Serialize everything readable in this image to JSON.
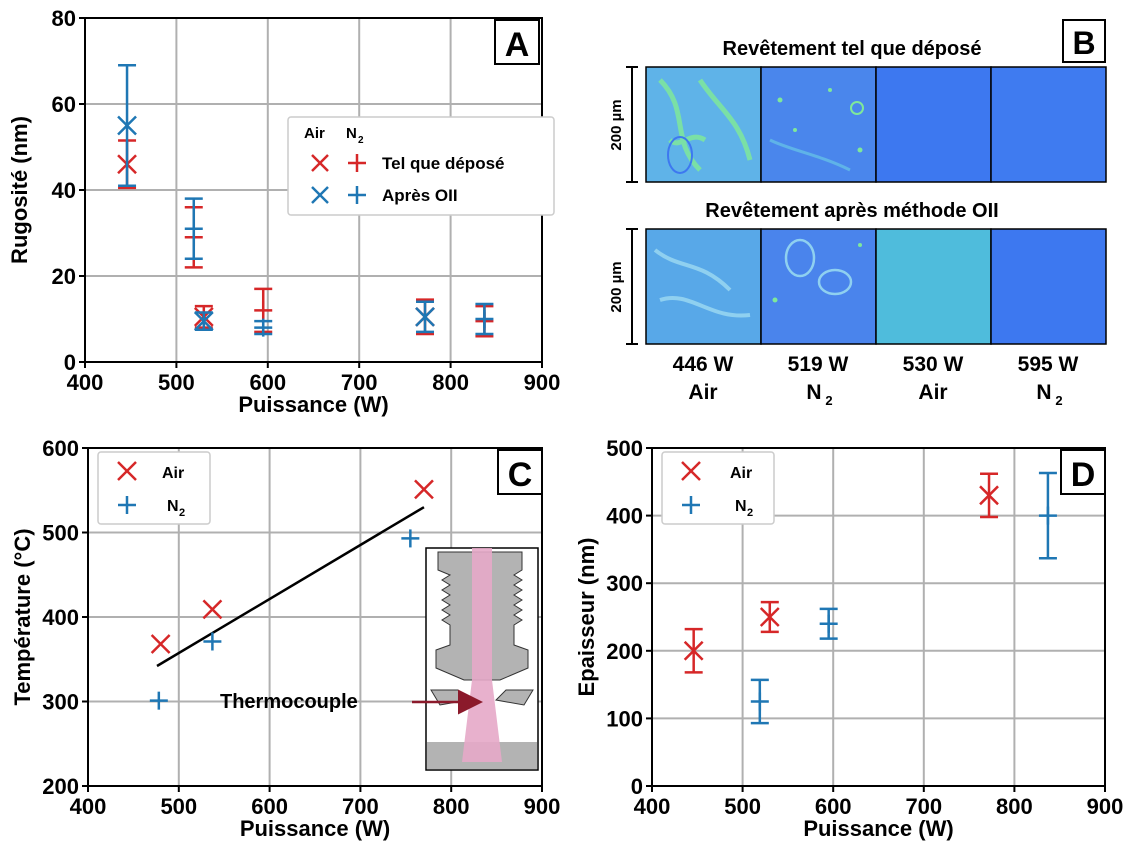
{
  "colors": {
    "air": "#d62728",
    "n2": "#1f77b4",
    "grid": "#b0b0b0",
    "tile_blue": "#3d78f0",
    "tile_cyan": "#4fc0de",
    "tile_green": "#7fe89a",
    "nozzle_grey": "#b3b3b3",
    "plume_pink": "#e6a8c8"
  },
  "chart_data": [
    {
      "panel": "A",
      "type": "scatter",
      "xlabel": "Puissance (W)",
      "ylabel": "Rugosité (nm)",
      "xlim": [
        400,
        900
      ],
      "ylim": [
        0,
        80
      ],
      "xticks": [
        400,
        500,
        600,
        700,
        800,
        900
      ],
      "yticks": [
        0,
        20,
        40,
        60,
        80
      ],
      "grid": true,
      "legend_position": "right",
      "legend_header": {
        "air": "Air",
        "n2_main": "N",
        "n2_sub": "2"
      },
      "legend_entries": [
        "Tel que déposé",
        "Après OII"
      ],
      "series": [
        {
          "name": "Tel que déposé",
          "atmosphere": "Air",
          "marker": "x",
          "color": "#d62728",
          "points": [
            {
              "x": 446,
              "y": 46,
              "err": 5.5
            },
            {
              "x": 530,
              "y": 10.5,
              "err": 2.5
            },
            {
              "x": 772,
              "y": 10.5,
              "err": 4
            }
          ]
        },
        {
          "name": "Tel que déposé",
          "atmosphere": "N2",
          "marker": "+",
          "color": "#d62728",
          "points": [
            {
              "x": 519,
              "y": 29,
              "err": 7
            },
            {
              "x": 595,
              "y": 12,
              "err": 5
            },
            {
              "x": 837,
              "y": 9.5,
              "err": 3.5
            }
          ]
        },
        {
          "name": "Après OII",
          "atmosphere": "Air",
          "marker": "x",
          "color": "#1f77b4",
          "points": [
            {
              "x": 446,
              "y": 55,
              "err": 14
            },
            {
              "x": 530,
              "y": 9.5,
              "err": 2
            },
            {
              "x": 772,
              "y": 10.5,
              "err": 3.5
            }
          ]
        },
        {
          "name": "Après OII",
          "atmosphere": "N2",
          "marker": "+",
          "color": "#1f77b4",
          "points": [
            {
              "x": 519,
              "y": 31,
              "err": 7
            },
            {
              "x": 595,
              "y": 8,
              "err": 1.5
            },
            {
              "x": 837,
              "y": 10,
              "err": 3.5
            }
          ]
        }
      ]
    },
    {
      "panel": "C",
      "type": "scatter",
      "xlabel": "Puissance (W)",
      "ylabel": "Température (°C)",
      "xlim": [
        400,
        900
      ],
      "ylim": [
        200,
        600
      ],
      "xticks": [
        400,
        500,
        600,
        700,
        800,
        900
      ],
      "yticks": [
        200,
        300,
        400,
        500,
        600
      ],
      "grid": true,
      "legend_position": "top-left",
      "series": [
        {
          "name": "Air",
          "marker": "x",
          "color": "#d62728",
          "points": [
            {
              "x": 480,
              "y": 368
            },
            {
              "x": 537,
              "y": 409
            },
            {
              "x": 770,
              "y": 551
            }
          ]
        },
        {
          "name": "N2",
          "label_main": "N",
          "label_sub": "2",
          "marker": "+",
          "color": "#1f77b4",
          "points": [
            {
              "x": 478,
              "y": 301
            },
            {
              "x": 537,
              "y": 371
            },
            {
              "x": 755,
              "y": 493
            }
          ]
        }
      ],
      "fit_line": {
        "x": [
          476,
          770
        ],
        "y": [
          342,
          530
        ],
        "color": "#000000"
      },
      "annotation": "Thermocouple"
    },
    {
      "panel": "D",
      "type": "scatter",
      "xlabel": "Puissance (W)",
      "ylabel": "Epaisseur (nm)",
      "xlim": [
        400,
        900
      ],
      "ylim": [
        0,
        500
      ],
      "xticks": [
        400,
        500,
        600,
        700,
        800,
        900
      ],
      "yticks": [
        0,
        100,
        200,
        300,
        400,
        500
      ],
      "grid": true,
      "legend_position": "top-left",
      "series": [
        {
          "name": "Air",
          "marker": "x",
          "color": "#d62728",
          "points": [
            {
              "x": 446,
              "y": 200,
              "err": 32
            },
            {
              "x": 530,
              "y": 250,
              "err": 22
            },
            {
              "x": 772,
              "y": 430,
              "err": 32
            }
          ]
        },
        {
          "name": "N2",
          "label_main": "N",
          "label_sub": "2",
          "marker": "+",
          "color": "#1f77b4",
          "points": [
            {
              "x": 519,
              "y": 125,
              "err": 32
            },
            {
              "x": 595,
              "y": 240,
              "err": 22
            },
            {
              "x": 837,
              "y": 400,
              "err": 63
            }
          ]
        }
      ]
    }
  ],
  "panel_b": {
    "label": "B",
    "top_title": "Revêtement tel que déposé",
    "bottom_title": "Revêtement après méthode OII",
    "scale_label": "200 µm",
    "columns": [
      {
        "power": "446 W",
        "gas_main": "Air",
        "gas_sub": ""
      },
      {
        "power": "519 W",
        "gas_main": "N",
        "gas_sub": "2"
      },
      {
        "power": "530 W",
        "gas_main": "Air",
        "gas_sub": ""
      },
      {
        "power": "595 W",
        "gas_main": "N",
        "gas_sub": "2"
      }
    ],
    "tile_colors": {
      "top": [
        "#5fb3e8",
        "#4a86ec",
        "#3d78f0",
        "#3f7bf0"
      ],
      "bottom": [
        "#58a8e8",
        "#4a84ec",
        "#4fbcdc",
        "#3d78f0"
      ]
    }
  }
}
